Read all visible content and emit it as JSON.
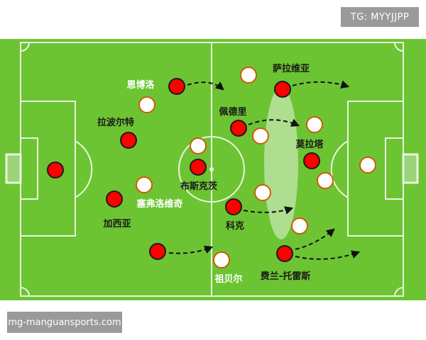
{
  "watermark_top": "TG: MYYJJPP",
  "watermark_bottom": "mg-manguansports.com",
  "colors": {
    "pitch": "#6cc433",
    "lines": "#e8f5dc",
    "team_red": "#ff0000",
    "team_white": "#ffffff",
    "white_outline": "#d25a00"
  },
  "players": {
    "red": [
      {
        "name": "恩博洛",
        "label_color": "#ffffff"
      },
      {
        "name": "拉波尔特",
        "label_color": "#1a1a1a"
      },
      {
        "name": "",
        "label_color": "#1a1a1a"
      },
      {
        "name": "加西亚",
        "label_color": "#1a1a1a"
      },
      {
        "name": "",
        "label_color": "#1a1a1a"
      },
      {
        "name": "布斯克茨",
        "label_color": "#1a1a1a"
      },
      {
        "name": "佩德里",
        "label_color": "#1a1a1a"
      },
      {
        "name": "科克",
        "label_color": "#1a1a1a"
      },
      {
        "name": "萨拉维亚",
        "label_color": "#1a1a1a"
      },
      {
        "name": "莫拉塔",
        "label_color": "#1a1a1a"
      },
      {
        "name": "费兰-托雷斯",
        "label_color": "#1a1a1a"
      }
    ],
    "white_labels": [
      {
        "name": "塞弗洛维奇",
        "label_color": "#ffffff"
      },
      {
        "name": "祖贝尔",
        "label_color": "#ffffff"
      }
    ]
  }
}
